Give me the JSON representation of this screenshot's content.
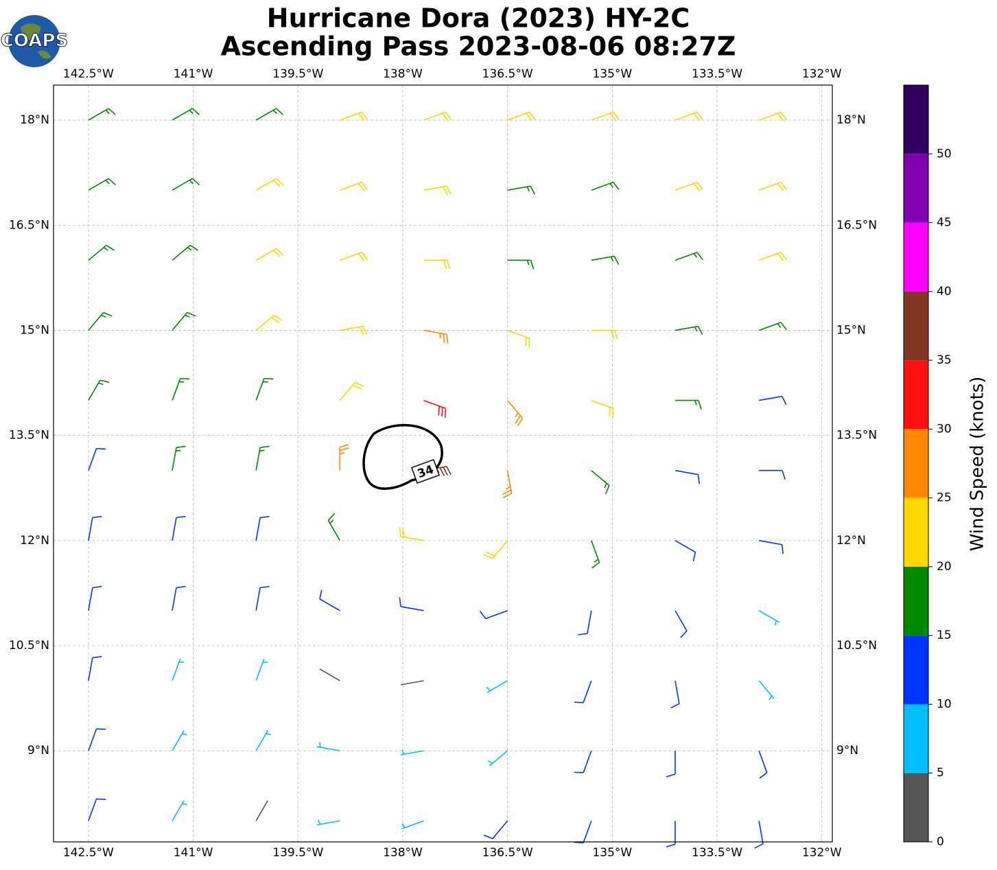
{
  "chart_data": {
    "type": "barbs",
    "title": "Hurricane Dora (2023) HY-2C",
    "subtitle": "Ascending Pass 2023-08-06 08:27Z",
    "logo": "COAPS",
    "xlim": [
      -143,
      -131.85
    ],
    "ylim": [
      7.7,
      18.5
    ],
    "xticks": [
      {
        "value": -142.5,
        "label": "142.5°W"
      },
      {
        "value": -141,
        "label": "141°W"
      },
      {
        "value": -139.5,
        "label": "139.5°W"
      },
      {
        "value": -138,
        "label": "138°W"
      },
      {
        "value": -136.5,
        "label": "136.5°W"
      },
      {
        "value": -135,
        "label": "135°W"
      },
      {
        "value": -133.5,
        "label": "133.5°W"
      },
      {
        "value": -132,
        "label": "132°W"
      }
    ],
    "yticks": [
      {
        "value": 18,
        "label": "18°N"
      },
      {
        "value": 16.5,
        "label": "16.5°N"
      },
      {
        "value": 15,
        "label": "15°N"
      },
      {
        "value": 13.5,
        "label": "13.5°N"
      },
      {
        "value": 12,
        "label": "12°N"
      },
      {
        "value": 10.5,
        "label": "10.5°N"
      },
      {
        "value": 9,
        "label": "9°N"
      }
    ],
    "grid": true,
    "barbs": {
      "lon": [
        -142.5,
        -141.3,
        -140.1,
        -138.9,
        -137.7,
        -136.5,
        -135.3,
        -134.1,
        -132.9
      ],
      "lat": [
        18,
        17,
        16,
        15,
        14,
        13,
        12,
        11,
        10,
        9,
        8
      ],
      "speed": [
        [
          17,
          17,
          18,
          22,
          22,
          22,
          22,
          22,
          22
        ],
        [
          17,
          17,
          22,
          22,
          20,
          18,
          18,
          22,
          22
        ],
        [
          17,
          18,
          22,
          22,
          22,
          18,
          17,
          18,
          20
        ],
        [
          17,
          17,
          22,
          23,
          27,
          23,
          20,
          17,
          17
        ],
        [
          16,
          17,
          18,
          23,
          32,
          25,
          22,
          17,
          14
        ],
        [
          14,
          16,
          18,
          25,
          38,
          28,
          18,
          14,
          13
        ],
        [
          13,
          13,
          14,
          18,
          22,
          20,
          15,
          13,
          12
        ],
        [
          12,
          12,
          10,
          12,
          10,
          13,
          13,
          11,
          9
        ],
        [
          12,
          9,
          7,
          3,
          2,
          7,
          12,
          10,
          8
        ],
        [
          12,
          8,
          6,
          8,
          7,
          9,
          11,
          12,
          12
        ],
        [
          14,
          8,
          3,
          8,
          9,
          10,
          12,
          13,
          12
        ]
      ],
      "direction": [
        [
          60,
          60,
          60,
          70,
          70,
          70,
          70,
          70,
          70
        ],
        [
          60,
          60,
          60,
          70,
          80,
          80,
          70,
          70,
          70
        ],
        [
          50,
          50,
          60,
          70,
          90,
          90,
          80,
          70,
          70
        ],
        [
          40,
          40,
          50,
          80,
          100,
          110,
          90,
          80,
          70
        ],
        [
          30,
          20,
          20,
          40,
          110,
          140,
          110,
          90,
          80
        ],
        [
          20,
          10,
          10,
          360,
          80,
          170,
          130,
          100,
          90
        ],
        [
          10,
          10,
          10,
          330,
          280,
          220,
          160,
          120,
          100
        ],
        [
          10,
          10,
          10,
          300,
          280,
          250,
          190,
          150,
          120
        ],
        [
          10,
          20,
          20,
          300,
          260,
          240,
          200,
          170,
          140
        ],
        [
          20,
          30,
          30,
          280,
          260,
          230,
          200,
          180,
          160
        ],
        [
          20,
          30,
          30,
          260,
          250,
          220,
          200,
          180,
          170
        ]
      ]
    },
    "contour_label": 34,
    "colorbar": {
      "label": "Wind Speed (knots)",
      "bins": [
        0,
        5,
        10,
        15,
        20,
        25,
        30,
        35,
        40,
        45,
        50,
        55
      ],
      "colors": [
        "#555555",
        "#00bfff",
        "#0033ff",
        "#008800",
        "#ffd700",
        "#ff8800",
        "#ff1010",
        "#803820",
        "#ff00ff",
        "#8000b0",
        "#300060"
      ],
      "ticks": [
        0,
        5,
        10,
        15,
        20,
        25,
        30,
        35,
        40,
        45,
        50
      ]
    }
  }
}
